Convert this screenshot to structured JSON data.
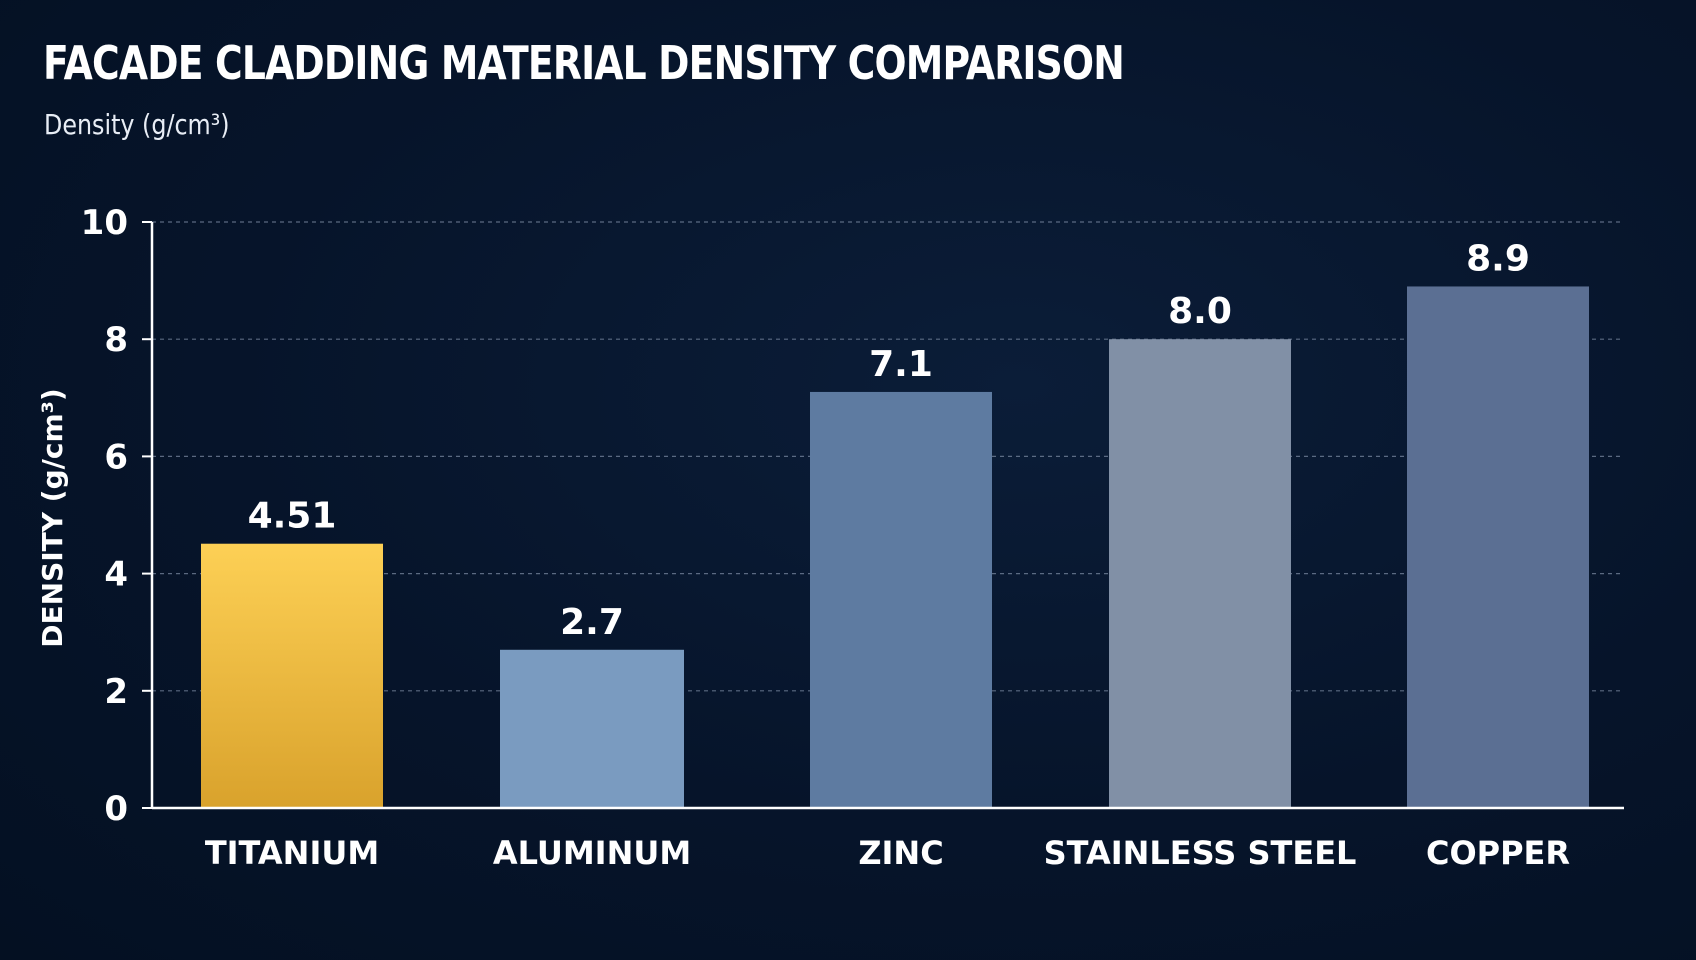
{
  "chart_data": {
    "type": "bar",
    "title": "FACADE CLADDING MATERIAL DENSITY COMPARISON",
    "subtitle": "Density (g/cm³)",
    "xlabel": "",
    "ylabel": "DENSITY (g/cm³)",
    "categories": [
      "TITANIUM",
      "ALUMINUM",
      "ZINC",
      "STAINLESS STEEL",
      "COPPER"
    ],
    "values": [
      4.51,
      2.7,
      7.1,
      8.0,
      8.9
    ],
    "value_labels": [
      "4.51",
      "2.7",
      "7.1",
      "8.0",
      "8.9"
    ],
    "colors": [
      "#f3bf3e",
      "#7a9bc0",
      "#5e7ba1",
      "#8190a6",
      "#5b6f93"
    ],
    "ylim": [
      0,
      10
    ],
    "yticks": [
      0,
      2,
      4,
      6,
      8,
      10
    ],
    "grid": true,
    "legend": "none"
  }
}
